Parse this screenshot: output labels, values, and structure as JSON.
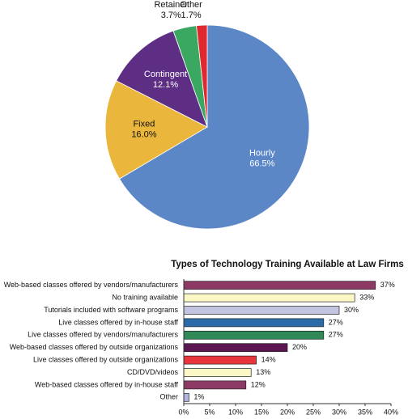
{
  "chart_data": [
    {
      "type": "pie",
      "categories": [
        "Hourly",
        "Fixed",
        "Contingent",
        "Retainer",
        "Other"
      ],
      "values": [
        66.5,
        16.0,
        12.1,
        3.7,
        1.7
      ],
      "value_labels": [
        "66.5%",
        "16.0%",
        "12.1%",
        "3.7%",
        "1.7%"
      ],
      "colors": [
        "#5b87c6",
        "#eab63c",
        "#5d2e84",
        "#3aa860",
        "#e0282f"
      ]
    },
    {
      "type": "barh",
      "title": "Types of Technology Training Available at Law Firms",
      "categories": [
        "Web-based classes offered by vendors/manufacturers",
        "No training available",
        "Tutorials included with software programs",
        "Live classes offered by in-house staff",
        "Live classes offered by vendors/manufacturers",
        "Web-based classes offered by outside organizations",
        "Live classes offered by outside organizations",
        "CD/DVD/videos",
        "Web-based classes offered by in-house staff",
        "Other"
      ],
      "values": [
        37,
        33,
        30,
        27,
        27,
        20,
        14,
        13,
        12,
        1
      ],
      "value_labels": [
        "37%",
        "33%",
        "30%",
        "27%",
        "27%",
        "20%",
        "14%",
        "13%",
        "12%",
        "1%"
      ],
      "colors": [
        "#8c3a64",
        "#fbf8c6",
        "#c3c4df",
        "#2b6aa8",
        "#2f8a58",
        "#5b1550",
        "#e8343b",
        "#fbf8c6",
        "#8c3a64",
        "#b3b3e0"
      ],
      "xlim": [
        0,
        40
      ],
      "xticks": [
        {
          "value": 0,
          "label": "0%"
        },
        {
          "value": 5,
          "label": "5%"
        },
        {
          "value": 10,
          "label": "10%"
        },
        {
          "value": 15,
          "label": "15%"
        },
        {
          "value": 20,
          "label": "20%"
        },
        {
          "value": 25,
          "label": "25%"
        },
        {
          "value": 30,
          "label": "30%"
        },
        {
          "value": 35,
          "label": "35%"
        },
        {
          "value": 40,
          "label": "40%"
        }
      ]
    }
  ]
}
